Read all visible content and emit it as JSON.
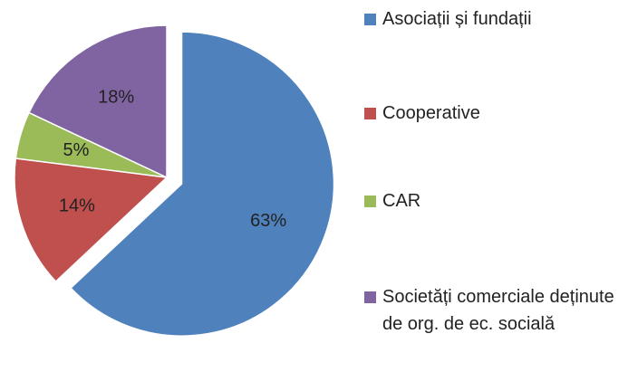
{
  "chart_data": {
    "type": "pie",
    "categories": [
      "Asociații și fundații",
      "Cooperative",
      "CAR",
      "Societăți comerciale deținute de org. de ec. socială"
    ],
    "values": [
      63,
      14,
      5,
      18
    ],
    "value_labels": [
      "63%",
      "14%",
      "5%",
      "18%"
    ],
    "colors": [
      "#4f81bd",
      "#c0504d",
      "#9bbb59",
      "#8064a2"
    ],
    "exploded": [
      true,
      false,
      false,
      false
    ]
  }
}
